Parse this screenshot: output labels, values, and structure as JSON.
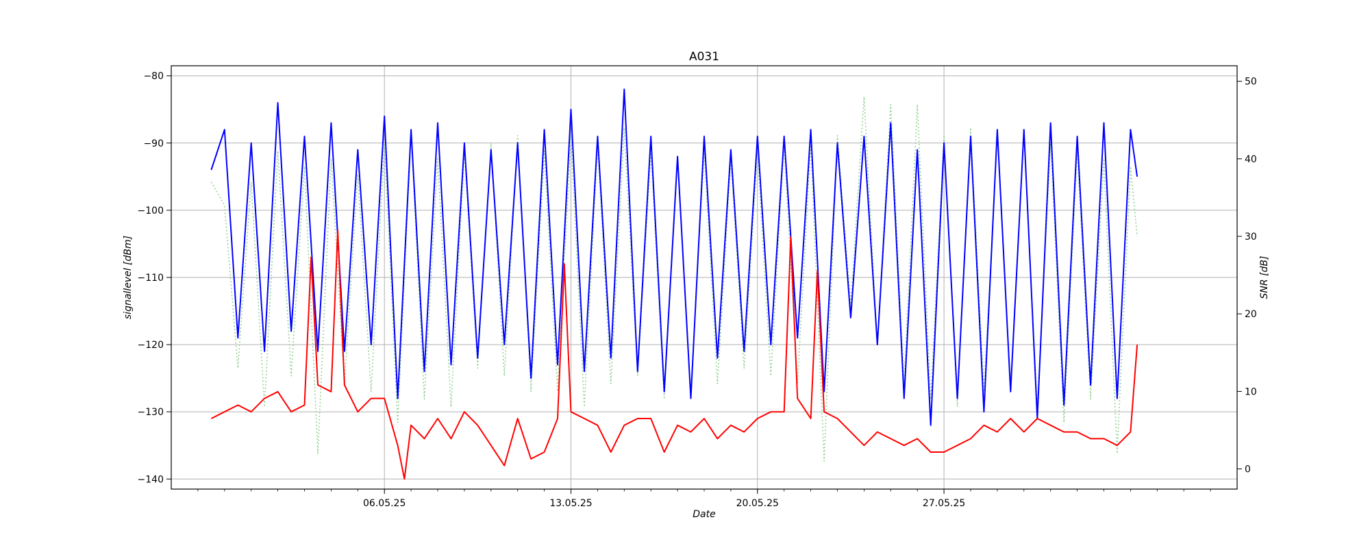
{
  "chart_data": {
    "type": "line",
    "title": "A031",
    "xlabel": "Date",
    "ylabel_left": "signallevel [dBm]",
    "ylabel_right": "SNR [dB]",
    "x_range": [
      "2025-04-28",
      "2025-06-07"
    ],
    "x_ticks": [
      {
        "date": "2025-05-06",
        "label": "06.05.25"
      },
      {
        "date": "2025-05-13",
        "label": "13.05.25"
      },
      {
        "date": "2025-05-20",
        "label": "20.05.25"
      },
      {
        "date": "2025-05-27",
        "label": "27.05.25"
      }
    ],
    "ylim_left": [
      -141.5,
      -78.5
    ],
    "yticks_left": [
      -80,
      -90,
      -100,
      -110,
      -120,
      -130,
      -140
    ],
    "ylim_right": [
      -2.6,
      52
    ],
    "yticks_right": [
      50,
      40,
      30,
      20,
      10,
      0
    ],
    "grid": true,
    "series": [
      {
        "axis": "left",
        "color": "#0000ff",
        "style": "solid",
        "width": 2,
        "points": [
          [
            "2025-04-29 12:00",
            -94
          ],
          [
            "2025-04-30 00:00",
            -88
          ],
          [
            "2025-04-30 12:00",
            -119
          ],
          [
            "2025-05-01 00:00",
            -90
          ],
          [
            "2025-05-01 12:00",
            -121
          ],
          [
            "2025-05-02 00:00",
            -84
          ],
          [
            "2025-05-02 12:00",
            -118
          ],
          [
            "2025-05-03 00:00",
            -89
          ],
          [
            "2025-05-03 12:00",
            -121
          ],
          [
            "2025-05-04 00:00",
            -87
          ],
          [
            "2025-05-04 12:00",
            -121
          ],
          [
            "2025-05-05 00:00",
            -91
          ],
          [
            "2025-05-05 12:00",
            -120
          ],
          [
            "2025-05-06 00:00",
            -86
          ],
          [
            "2025-05-06 12:00",
            -128
          ],
          [
            "2025-05-07 00:00",
            -88
          ],
          [
            "2025-05-07 12:00",
            -124
          ],
          [
            "2025-05-08 00:00",
            -87
          ],
          [
            "2025-05-08 12:00",
            -123
          ],
          [
            "2025-05-09 00:00",
            -90
          ],
          [
            "2025-05-09 12:00",
            -122
          ],
          [
            "2025-05-10 00:00",
            -91
          ],
          [
            "2025-05-10 12:00",
            -120
          ],
          [
            "2025-05-11 00:00",
            -90
          ],
          [
            "2025-05-11 12:00",
            -125
          ],
          [
            "2025-05-12 00:00",
            -88
          ],
          [
            "2025-05-12 12:00",
            -123
          ],
          [
            "2025-05-13 00:00",
            -85
          ],
          [
            "2025-05-13 12:00",
            -124
          ],
          [
            "2025-05-14 00:00",
            -89
          ],
          [
            "2025-05-14 12:00",
            -122
          ],
          [
            "2025-05-15 00:00",
            -82
          ],
          [
            "2025-05-15 12:00",
            -124
          ],
          [
            "2025-05-16 00:00",
            -89
          ],
          [
            "2025-05-16 12:00",
            -127
          ],
          [
            "2025-05-17 00:00",
            -92
          ],
          [
            "2025-05-17 12:00",
            -128
          ],
          [
            "2025-05-18 00:00",
            -89
          ],
          [
            "2025-05-18 12:00",
            -122
          ],
          [
            "2025-05-19 00:00",
            -91
          ],
          [
            "2025-05-19 12:00",
            -121
          ],
          [
            "2025-05-20 00:00",
            -89
          ],
          [
            "2025-05-20 12:00",
            -120
          ],
          [
            "2025-05-21 00:00",
            -89
          ],
          [
            "2025-05-21 12:00",
            -119
          ],
          [
            "2025-05-22 00:00",
            -88
          ],
          [
            "2025-05-22 12:00",
            -127
          ],
          [
            "2025-05-23 00:00",
            -90
          ],
          [
            "2025-05-23 12:00",
            -116
          ],
          [
            "2025-05-24 00:00",
            -89
          ],
          [
            "2025-05-24 12:00",
            -120
          ],
          [
            "2025-05-25 00:00",
            -87
          ],
          [
            "2025-05-25 12:00",
            -128
          ],
          [
            "2025-05-26 00:00",
            -91
          ],
          [
            "2025-05-26 12:00",
            -132
          ],
          [
            "2025-05-27 00:00",
            -90
          ],
          [
            "2025-05-27 12:00",
            -128
          ],
          [
            "2025-05-28 00:00",
            -89
          ],
          [
            "2025-05-28 12:00",
            -130
          ],
          [
            "2025-05-29 00:00",
            -88
          ],
          [
            "2025-05-29 12:00",
            -127
          ],
          [
            "2025-05-30 00:00",
            -88
          ],
          [
            "2025-05-30 12:00",
            -131
          ],
          [
            "2025-05-31 00:00",
            -87
          ],
          [
            "2025-05-31 12:00",
            -129
          ],
          [
            "2025-06-01 00:00",
            -89
          ],
          [
            "2025-06-01 12:00",
            -126
          ],
          [
            "2025-06-02 00:00",
            -87
          ],
          [
            "2025-06-02 12:00",
            -128
          ],
          [
            "2025-06-03 00:00",
            -88
          ],
          [
            "2025-06-03 06:00",
            -95
          ]
        ]
      },
      {
        "axis": "right",
        "color": "#8fd08f",
        "style": "dotted",
        "width": 1.5,
        "points": [
          [
            "2025-04-29 12:00",
            37
          ],
          [
            "2025-04-30 00:00",
            34
          ],
          [
            "2025-04-30 12:00",
            13
          ],
          [
            "2025-05-01 00:00",
            37
          ],
          [
            "2025-05-01 12:00",
            8
          ],
          [
            "2025-05-02 00:00",
            41
          ],
          [
            "2025-05-02 12:00",
            12
          ],
          [
            "2025-05-03 00:00",
            39
          ],
          [
            "2025-05-03 12:00",
            2
          ],
          [
            "2025-05-04 00:00",
            40
          ],
          [
            "2025-05-04 12:00",
            11
          ],
          [
            "2025-05-05 00:00",
            38
          ],
          [
            "2025-05-05 12:00",
            10
          ],
          [
            "2025-05-06 00:00",
            42
          ],
          [
            "2025-05-06 12:00",
            6
          ],
          [
            "2025-05-07 00:00",
            43
          ],
          [
            "2025-05-07 12:00",
            9
          ],
          [
            "2025-05-08 00:00",
            40
          ],
          [
            "2025-05-08 12:00",
            8
          ],
          [
            "2025-05-09 00:00",
            41
          ],
          [
            "2025-05-09 12:00",
            13
          ],
          [
            "2025-05-10 00:00",
            42
          ],
          [
            "2025-05-10 12:00",
            12
          ],
          [
            "2025-05-11 00:00",
            43
          ],
          [
            "2025-05-11 12:00",
            10
          ],
          [
            "2025-05-12 00:00",
            41
          ],
          [
            "2025-05-12 12:00",
            10
          ],
          [
            "2025-05-13 00:00",
            43
          ],
          [
            "2025-05-13 12:00",
            8
          ],
          [
            "2025-05-14 00:00",
            42
          ],
          [
            "2025-05-14 12:00",
            11
          ],
          [
            "2025-05-15 00:00",
            44
          ],
          [
            "2025-05-15 12:00",
            12
          ],
          [
            "2025-05-16 00:00",
            41
          ],
          [
            "2025-05-16 12:00",
            9
          ],
          [
            "2025-05-17 00:00",
            40
          ],
          [
            "2025-05-17 12:00",
            10
          ],
          [
            "2025-05-18 00:00",
            41
          ],
          [
            "2025-05-18 12:00",
            11
          ],
          [
            "2025-05-19 00:00",
            40
          ],
          [
            "2025-05-19 12:00",
            13
          ],
          [
            "2025-05-20 00:00",
            41
          ],
          [
            "2025-05-20 12:00",
            12
          ],
          [
            "2025-05-21 00:00",
            42
          ],
          [
            "2025-05-21 12:00",
            11
          ],
          [
            "2025-05-22 00:00",
            42
          ],
          [
            "2025-05-22 12:00",
            1
          ],
          [
            "2025-05-23 00:00",
            43
          ],
          [
            "2025-05-23 12:00",
            21
          ],
          [
            "2025-05-24 00:00",
            48
          ],
          [
            "2025-05-24 12:00",
            16
          ],
          [
            "2025-05-25 00:00",
            47
          ],
          [
            "2025-05-25 12:00",
            11
          ],
          [
            "2025-05-26 00:00",
            47
          ],
          [
            "2025-05-26 12:00",
            9
          ],
          [
            "2025-05-27 00:00",
            43
          ],
          [
            "2025-05-27 12:00",
            8
          ],
          [
            "2025-05-28 00:00",
            44
          ],
          [
            "2025-05-28 12:00",
            10
          ],
          [
            "2025-05-29 00:00",
            43
          ],
          [
            "2025-05-29 12:00",
            11
          ],
          [
            "2025-05-30 00:00",
            43
          ],
          [
            "2025-05-30 12:00",
            8
          ],
          [
            "2025-05-31 00:00",
            42
          ],
          [
            "2025-05-31 12:00",
            6
          ],
          [
            "2025-06-01 00:00",
            41
          ],
          [
            "2025-06-01 12:00",
            9
          ],
          [
            "2025-06-02 00:00",
            40
          ],
          [
            "2025-06-02 12:00",
            2
          ],
          [
            "2025-06-03 00:00",
            39
          ],
          [
            "2025-06-03 06:00",
            30
          ]
        ]
      },
      {
        "axis": "left",
        "color": "#ff0000",
        "style": "solid",
        "width": 2,
        "points": [
          [
            "2025-04-29 12:00",
            -131
          ],
          [
            "2025-04-30 00:00",
            -130
          ],
          [
            "2025-04-30 12:00",
            -129
          ],
          [
            "2025-05-01 00:00",
            -130
          ],
          [
            "2025-05-01 12:00",
            -128
          ],
          [
            "2025-05-02 00:00",
            -127
          ],
          [
            "2025-05-02 12:00",
            -130
          ],
          [
            "2025-05-03 00:00",
            -129
          ],
          [
            "2025-05-03 06:00",
            -107
          ],
          [
            "2025-05-03 12:00",
            -126
          ],
          [
            "2025-05-04 00:00",
            -127
          ],
          [
            "2025-05-04 06:00",
            -103
          ],
          [
            "2025-05-04 12:00",
            -126
          ],
          [
            "2025-05-05 00:00",
            -130
          ],
          [
            "2025-05-05 12:00",
            -128
          ],
          [
            "2025-05-06 00:00",
            -128
          ],
          [
            "2025-05-06 12:00",
            -135
          ],
          [
            "2025-05-06 18:00",
            -140
          ],
          [
            "2025-05-07 00:00",
            -132
          ],
          [
            "2025-05-07 12:00",
            -134
          ],
          [
            "2025-05-08 00:00",
            -131
          ],
          [
            "2025-05-08 12:00",
            -134
          ],
          [
            "2025-05-09 00:00",
            -130
          ],
          [
            "2025-05-09 12:00",
            -132
          ],
          [
            "2025-05-10 00:00",
            -135
          ],
          [
            "2025-05-10 12:00",
            -138
          ],
          [
            "2025-05-11 00:00",
            -131
          ],
          [
            "2025-05-11 12:00",
            -137
          ],
          [
            "2025-05-12 00:00",
            -136
          ],
          [
            "2025-05-12 12:00",
            -131
          ],
          [
            "2025-05-12 18:00",
            -108
          ],
          [
            "2025-05-13 00:00",
            -130
          ],
          [
            "2025-05-13 12:00",
            -131
          ],
          [
            "2025-05-14 00:00",
            -132
          ],
          [
            "2025-05-14 12:00",
            -136
          ],
          [
            "2025-05-15 00:00",
            -132
          ],
          [
            "2025-05-15 12:00",
            -131
          ],
          [
            "2025-05-16 00:00",
            -131
          ],
          [
            "2025-05-16 12:00",
            -136
          ],
          [
            "2025-05-17 00:00",
            -132
          ],
          [
            "2025-05-17 12:00",
            -133
          ],
          [
            "2025-05-18 00:00",
            -131
          ],
          [
            "2025-05-18 12:00",
            -134
          ],
          [
            "2025-05-19 00:00",
            -132
          ],
          [
            "2025-05-19 12:00",
            -133
          ],
          [
            "2025-05-20 00:00",
            -131
          ],
          [
            "2025-05-20 12:00",
            -130
          ],
          [
            "2025-05-21 00:00",
            -130
          ],
          [
            "2025-05-21 06:00",
            -104
          ],
          [
            "2025-05-21 12:00",
            -128
          ],
          [
            "2025-05-22 00:00",
            -131
          ],
          [
            "2025-05-22 06:00",
            -109
          ],
          [
            "2025-05-22 12:00",
            -130
          ],
          [
            "2025-05-23 00:00",
            -131
          ],
          [
            "2025-05-23 12:00",
            -133
          ],
          [
            "2025-05-24 00:00",
            -135
          ],
          [
            "2025-05-24 12:00",
            -133
          ],
          [
            "2025-05-25 00:00",
            -134
          ],
          [
            "2025-05-25 12:00",
            -135
          ],
          [
            "2025-05-26 00:00",
            -134
          ],
          [
            "2025-05-26 12:00",
            -136
          ],
          [
            "2025-05-27 00:00",
            -136
          ],
          [
            "2025-05-27 12:00",
            -135
          ],
          [
            "2025-05-28 00:00",
            -134
          ],
          [
            "2025-05-28 12:00",
            -132
          ],
          [
            "2025-05-29 00:00",
            -133
          ],
          [
            "2025-05-29 12:00",
            -131
          ],
          [
            "2025-05-30 00:00",
            -133
          ],
          [
            "2025-05-30 12:00",
            -131
          ],
          [
            "2025-05-31 00:00",
            -132
          ],
          [
            "2025-05-31 12:00",
            -133
          ],
          [
            "2025-06-01 00:00",
            -133
          ],
          [
            "2025-06-01 12:00",
            -134
          ],
          [
            "2025-06-02 00:00",
            -134
          ],
          [
            "2025-06-02 12:00",
            -135
          ],
          [
            "2025-06-03 00:00",
            -133
          ],
          [
            "2025-06-03 06:00",
            -120
          ]
        ]
      }
    ]
  }
}
